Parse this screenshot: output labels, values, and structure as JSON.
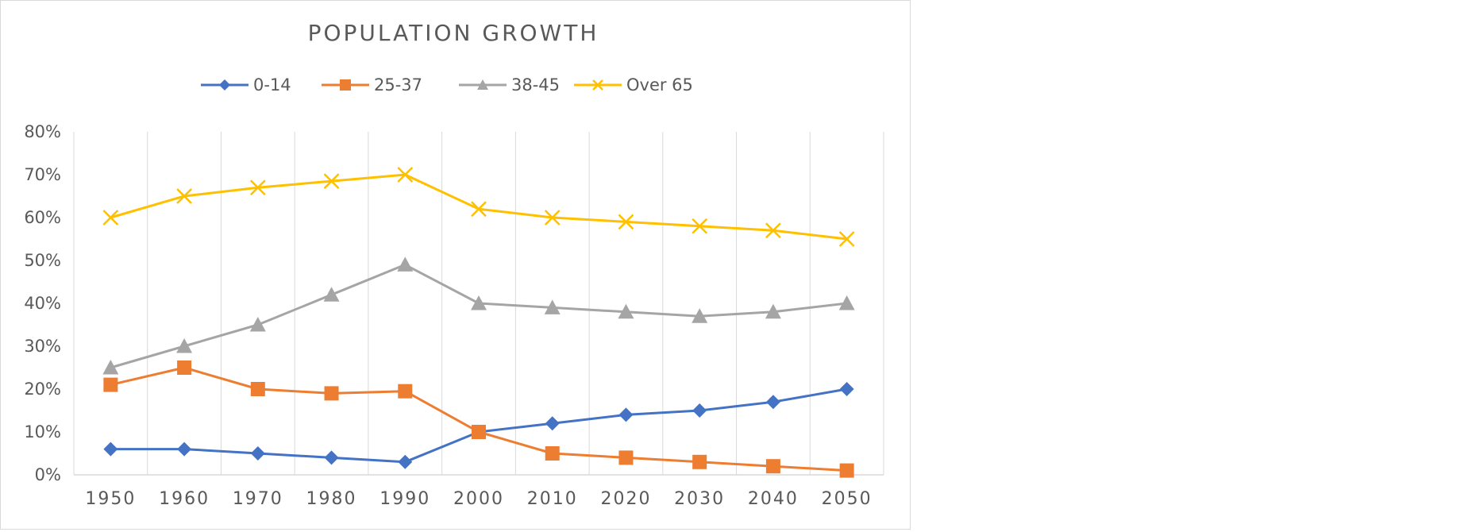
{
  "chart_data": {
    "type": "line",
    "title": "POPULATION GROWTH",
    "xlabel": "",
    "ylabel": "",
    "categories": [
      "1950",
      "1960",
      "1970",
      "1980",
      "1990",
      "2000",
      "2010",
      "2020",
      "2030",
      "2040",
      "2050"
    ],
    "yticks": [
      "0%",
      "10%",
      "20%",
      "30%",
      "40%",
      "50%",
      "60%",
      "70%",
      "80%"
    ],
    "ylim": [
      0,
      80
    ],
    "grid": "vertical",
    "legend_position": "top",
    "series": [
      {
        "name": "0-14",
        "color": "#4472c4",
        "marker": "diamond",
        "values": [
          6,
          6,
          5,
          4,
          3,
          10,
          12,
          14,
          15,
          17,
          20
        ]
      },
      {
        "name": "25-37",
        "color": "#ed7d31",
        "marker": "square",
        "values": [
          21,
          25,
          20,
          19,
          19.5,
          10,
          5,
          4,
          3,
          2,
          1
        ]
      },
      {
        "name": "38-45",
        "color": "#a5a5a5",
        "marker": "triangle",
        "values": [
          25,
          30,
          35,
          42,
          49,
          40,
          39,
          38,
          37,
          38,
          40
        ]
      },
      {
        "name": "Over 65",
        "color": "#ffc000",
        "marker": "x",
        "values": [
          60,
          65,
          67,
          68.5,
          70,
          62,
          60,
          59,
          58,
          57,
          55
        ]
      }
    ]
  }
}
